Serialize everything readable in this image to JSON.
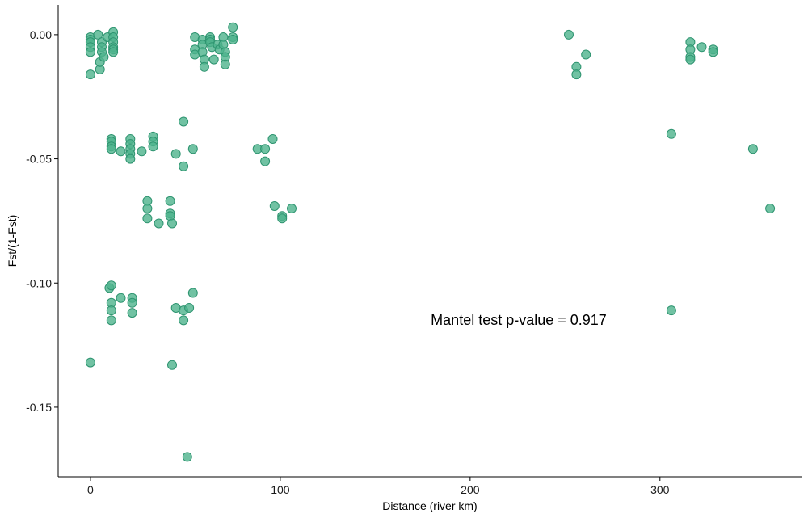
{
  "chart_data": {
    "type": "scatter",
    "xlabel": "Distance (river km)",
    "ylabel": "Fst/(1-Fst)",
    "xlim": [
      -17,
      375
    ],
    "ylim": [
      -0.178,
      0.012
    ],
    "xticks": [
      0,
      100,
      200,
      300
    ],
    "xtick_labels": [
      "0",
      "100",
      "200",
      "300"
    ],
    "yticks": [
      0.0,
      -0.05,
      -0.1,
      -0.15
    ],
    "ytick_labels": [
      "0.00",
      "-0.05",
      "-0.10",
      "-0.15"
    ],
    "grid": false,
    "legend": "none",
    "point_color": "#4DB38C",
    "point_stroke": "#2E9470",
    "annotation": "Mantel test p-value = 0.917",
    "points": [
      [
        0,
        -0.001
      ],
      [
        0,
        -0.002
      ],
      [
        0,
        -0.003
      ],
      [
        0,
        -0.005
      ],
      [
        0,
        -0.007
      ],
      [
        0,
        -0.016
      ],
      [
        0,
        -0.132
      ],
      [
        4,
        0.0
      ],
      [
        5,
        -0.014
      ],
      [
        5,
        -0.011
      ],
      [
        6,
        -0.003
      ],
      [
        6,
        -0.005
      ],
      [
        6,
        -0.007
      ],
      [
        7,
        -0.009
      ],
      [
        9,
        -0.001
      ],
      [
        10,
        -0.102
      ],
      [
        11,
        -0.101
      ],
      [
        11,
        -0.108
      ],
      [
        11,
        -0.111
      ],
      [
        11,
        -0.115
      ],
      [
        11,
        -0.042
      ],
      [
        11,
        -0.043
      ],
      [
        11,
        -0.045
      ],
      [
        11,
        -0.046
      ],
      [
        12,
        0.001
      ],
      [
        12,
        -0.001
      ],
      [
        12,
        -0.003
      ],
      [
        12,
        -0.005
      ],
      [
        12,
        -0.006
      ],
      [
        12,
        -0.007
      ],
      [
        16,
        -0.047
      ],
      [
        16,
        -0.106
      ],
      [
        21,
        -0.042
      ],
      [
        21,
        -0.044
      ],
      [
        21,
        -0.046
      ],
      [
        21,
        -0.048
      ],
      [
        21,
        -0.05
      ],
      [
        22,
        -0.106
      ],
      [
        22,
        -0.108
      ],
      [
        22,
        -0.112
      ],
      [
        27,
        -0.047
      ],
      [
        30,
        -0.067
      ],
      [
        30,
        -0.07
      ],
      [
        30,
        -0.074
      ],
      [
        33,
        -0.041
      ],
      [
        33,
        -0.043
      ],
      [
        33,
        -0.045
      ],
      [
        36,
        -0.076
      ],
      [
        42,
        -0.067
      ],
      [
        42,
        -0.072
      ],
      [
        42,
        -0.073
      ],
      [
        43,
        -0.076
      ],
      [
        43,
        -0.133
      ],
      [
        45,
        -0.048
      ],
      [
        45,
        -0.11
      ],
      [
        49,
        -0.035
      ],
      [
        49,
        -0.053
      ],
      [
        49,
        -0.111
      ],
      [
        49,
        -0.115
      ],
      [
        51,
        -0.17
      ],
      [
        52,
        -0.11
      ],
      [
        54,
        -0.104
      ],
      [
        54,
        -0.046
      ],
      [
        55,
        -0.001
      ],
      [
        55,
        -0.006
      ],
      [
        55,
        -0.008
      ],
      [
        59,
        -0.002
      ],
      [
        59,
        -0.004
      ],
      [
        59,
        -0.007
      ],
      [
        60,
        -0.01
      ],
      [
        60,
        -0.013
      ],
      [
        63,
        -0.001
      ],
      [
        63,
        -0.002
      ],
      [
        63,
        -0.003
      ],
      [
        64,
        -0.005
      ],
      [
        65,
        -0.01
      ],
      [
        67,
        -0.004
      ],
      [
        68,
        -0.006
      ],
      [
        70,
        -0.001
      ],
      [
        70,
        -0.004
      ],
      [
        71,
        -0.007
      ],
      [
        71,
        -0.009
      ],
      [
        71,
        -0.012
      ],
      [
        75,
        0.003
      ],
      [
        75,
        -0.001
      ],
      [
        75,
        -0.002
      ],
      [
        88,
        -0.046
      ],
      [
        92,
        -0.046
      ],
      [
        92,
        -0.051
      ],
      [
        96,
        -0.042
      ],
      [
        97,
        -0.069
      ],
      [
        101,
        -0.073
      ],
      [
        101,
        -0.074
      ],
      [
        106,
        -0.07
      ],
      [
        252,
        0.0
      ],
      [
        256,
        -0.013
      ],
      [
        256,
        -0.016
      ],
      [
        261,
        -0.008
      ],
      [
        306,
        -0.04
      ],
      [
        306,
        -0.111
      ],
      [
        316,
        -0.003
      ],
      [
        316,
        -0.006
      ],
      [
        316,
        -0.009
      ],
      [
        316,
        -0.01
      ],
      [
        322,
        -0.005
      ],
      [
        328,
        -0.006
      ],
      [
        328,
        -0.007
      ],
      [
        349,
        -0.046
      ],
      [
        358,
        -0.07
      ]
    ]
  }
}
